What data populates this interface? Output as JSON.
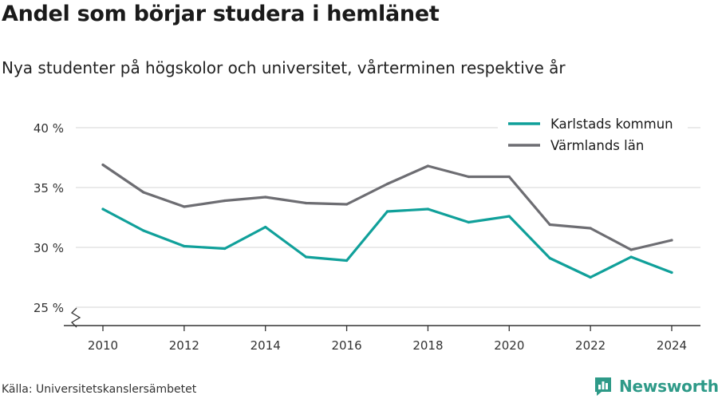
{
  "header": {
    "title": "Andel som börjar studera i hemlänet",
    "subtitle": "Nya studenter på högskolor och universitet, vårterminen respektive år"
  },
  "footer": {
    "source": "Källa: Universitetskanslersämbetet",
    "brand": "Newsworthy",
    "brand_color": "#2e9a88",
    "brand_icon": "bar-chart-speech-bubble-icon"
  },
  "chart_data": {
    "type": "line",
    "title": "Andel som börjar studera i hemlänet",
    "subtitle": "Nya studenter på högskolor och universitet, vårterminen respektive år",
    "x": [
      2010,
      2011,
      2012,
      2013,
      2014,
      2015,
      2016,
      2017,
      2018,
      2019,
      2020,
      2021,
      2022,
      2023,
      2024
    ],
    "x_ticks": [
      2010,
      2012,
      2014,
      2016,
      2018,
      2020,
      2022,
      2024
    ],
    "x_tick_labels": [
      "2010",
      "2012",
      "2014",
      "2016",
      "2018",
      "2020",
      "2022",
      "2024"
    ],
    "y_ticks": [
      25,
      30,
      35,
      40
    ],
    "y_tick_labels": [
      "25 %",
      "30 %",
      "35 %",
      "40 %"
    ],
    "ylim": [
      25,
      40
    ],
    "y_axis_break": true,
    "grid": "horizontal",
    "legend_position": "top-right",
    "series": [
      {
        "name": "Karlstads kommun",
        "color": "#10a09a",
        "values": [
          33.2,
          31.4,
          30.1,
          29.9,
          31.7,
          29.2,
          28.9,
          33.0,
          33.2,
          32.1,
          32.6,
          29.1,
          27.5,
          29.2,
          27.9
        ]
      },
      {
        "name": "Värmlands län",
        "color": "#6d6d72",
        "values": [
          36.9,
          34.6,
          33.4,
          33.9,
          34.2,
          33.7,
          33.6,
          35.3,
          36.8,
          35.9,
          35.9,
          31.9,
          31.6,
          29.8,
          30.6
        ]
      }
    ]
  }
}
